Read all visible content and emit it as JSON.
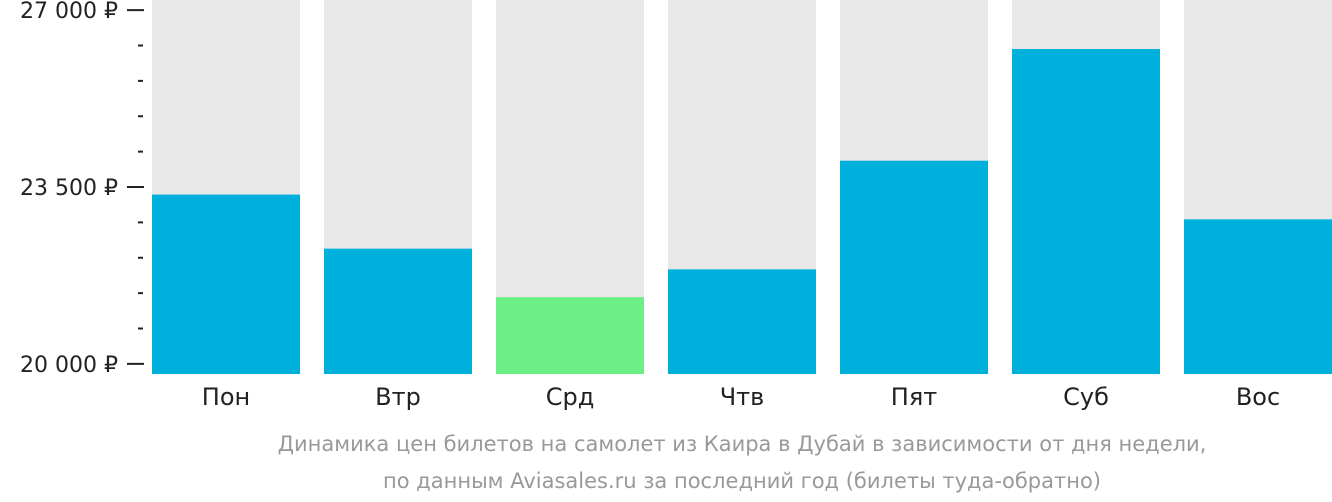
{
  "chart_data": {
    "type": "bar",
    "categories": [
      "Пон",
      "Втр",
      "Срд",
      "Чтв",
      "Пят",
      "Суб",
      "Вос"
    ],
    "values": [
      23350,
      22280,
      21320,
      21870,
      24020,
      26230,
      22860
    ],
    "ylim": [
      19800,
      27200
    ],
    "yticks": [
      {
        "value": 20000,
        "label": "20 000 ₽"
      },
      {
        "value": 23500,
        "label": "23 500 ₽"
      },
      {
        "value": 27000,
        "label": "27 000 ₽"
      }
    ],
    "minor_step": 700,
    "highlight_index": 2,
    "colors": {
      "bar": "#00b0dc",
      "highlight": "#6cef86",
      "track": "#e8e8e8",
      "tick_label": "#222222",
      "caption": "#999999"
    },
    "caption": [
      "Динамика цен билетов на самолет из Каира в Дубай в зависимости от дня недели,",
      "по данным Aviasales.ru за последний год (билеты туда-обратно)"
    ]
  }
}
